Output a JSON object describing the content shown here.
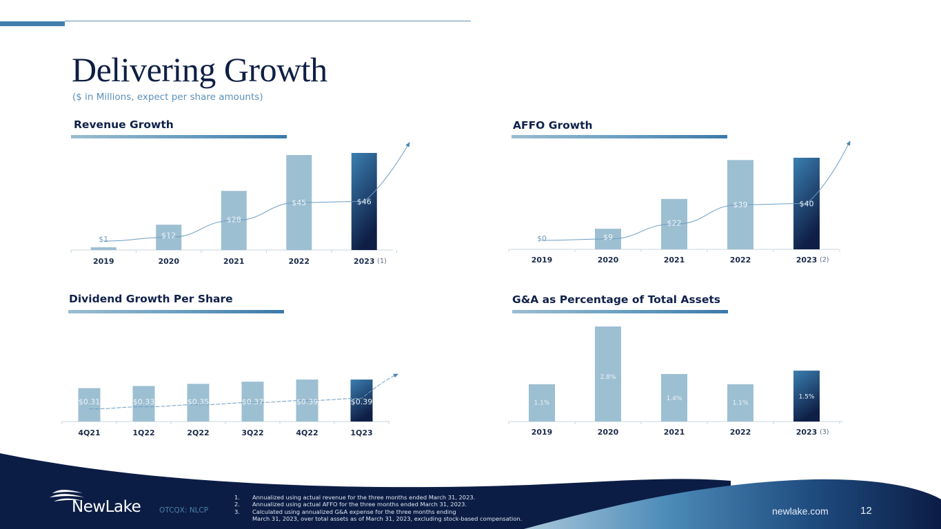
{
  "header": {
    "title": "Delivering Growth",
    "subtitle": "($ in Millions, expect per share amounts)"
  },
  "colors": {
    "bar_light": "#9dbfd2",
    "bar_dark_top": "#3b7fb1",
    "bar_dark_bottom": "#0e1e45",
    "navy": "#0c1d45",
    "accent": "#3f7fae"
  },
  "chart_data": [
    {
      "id": "revenue",
      "type": "bar",
      "title": "Revenue Growth",
      "categories": [
        "2019",
        "2020",
        "2021",
        "2022",
        "2023"
      ],
      "footnote_marks": [
        "",
        "",
        "",
        "",
        "(1)"
      ],
      "values": [
        1,
        12,
        28,
        45,
        46
      ],
      "labels": [
        "$1",
        "$12",
        "$28",
        "$45",
        "$46"
      ],
      "ylim": [
        0,
        46
      ],
      "highlight_last": true,
      "trend_arrow": true,
      "xlabel": "",
      "ylabel": ""
    },
    {
      "id": "affo",
      "type": "bar",
      "title": "AFFO Growth",
      "categories": [
        "2019",
        "2020",
        "2021",
        "2022",
        "2023"
      ],
      "footnote_marks": [
        "",
        "",
        "",
        "",
        "(2)"
      ],
      "values": [
        0,
        9,
        22,
        39,
        40
      ],
      "labels": [
        "$0",
        "$9",
        "$22",
        "$39",
        "$40"
      ],
      "ylim": [
        0,
        40
      ],
      "highlight_last": true,
      "trend_arrow": true,
      "xlabel": "",
      "ylabel": ""
    },
    {
      "id": "dividend",
      "type": "bar",
      "title": "Dividend Growth Per Share",
      "categories": [
        "4Q21",
        "1Q22",
        "2Q22",
        "3Q22",
        "4Q22",
        "1Q23"
      ],
      "footnote_marks": [
        "",
        "",
        "",
        "",
        "",
        ""
      ],
      "values": [
        0.31,
        0.33,
        0.35,
        0.37,
        0.39,
        0.39
      ],
      "labels": [
        "$0.31",
        "$0.33",
        "$0.35",
        "$0.37",
        "$0.39",
        "$0.39"
      ],
      "ylim": [
        0,
        0.39
      ],
      "highlight_last": true,
      "trend_arrow": true,
      "xlabel": "",
      "ylabel": ""
    },
    {
      "id": "ga",
      "type": "bar",
      "title": "G&A as Percentage of Total Assets",
      "categories": [
        "2019",
        "2020",
        "2021",
        "2022",
        "2023"
      ],
      "footnote_marks": [
        "",
        "",
        "",
        "",
        "(3)"
      ],
      "values": [
        1.1,
        2.8,
        1.4,
        1.1,
        1.5
      ],
      "labels": [
        "1.1%",
        "2.8%",
        "1.4%",
        "1.1%",
        "1.5%"
      ],
      "ylim": [
        0,
        2.8
      ],
      "highlight_last": true,
      "trend_arrow": false,
      "xlabel": "",
      "ylabel": ""
    }
  ],
  "footer": {
    "logo_text": "NewLake",
    "ticker": "OTCQX: NLCP",
    "notes": [
      {
        "num": "1.",
        "text": "Annualized using actual revenue for the three months ended March 31, 2023."
      },
      {
        "num": "2.",
        "text": "Annualized using actual AFFO for the three months ended March 31, 2023."
      },
      {
        "num": "3.",
        "text": "Calculated using annualized G&A expense for the three months ending"
      },
      {
        "num": "",
        "text": "March 31, 2023, over total assets as of March 31, 2023, excluding stock-based compensation."
      }
    ],
    "website": "newlake.com",
    "page_number": "12"
  }
}
